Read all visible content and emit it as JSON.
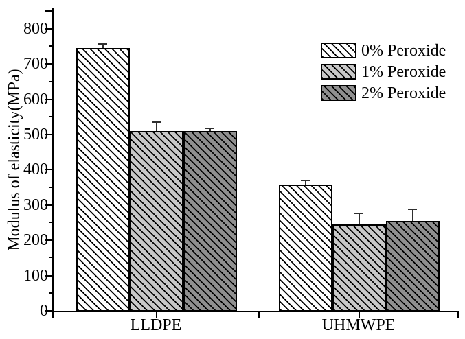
{
  "chart_data": {
    "type": "bar",
    "title": "",
    "ylabel": "Modulus of elasticity(MPa)",
    "xlabel": "",
    "categories": [
      "LLDPE",
      "UHMWPE"
    ],
    "series": [
      {
        "name": "0% Peroxide",
        "values": [
          745,
          357
        ],
        "errors_plus": [
          12,
          13
        ],
        "fill": "#ffffff"
      },
      {
        "name": "1% Peroxide",
        "values": [
          510,
          245
        ],
        "errors_plus": [
          25,
          31
        ],
        "fill": "#c8c8c8"
      },
      {
        "name": "2% Peroxide",
        "values": [
          510,
          255
        ],
        "errors_plus": [
          8,
          33
        ],
        "fill": "#8f8f8f"
      }
    ],
    "hatch_pattern": "diagonal-down",
    "hatch_color": "#000000",
    "axis_color": "#000000",
    "error_bar_color": "#2f2f2f",
    "ylim": [
      0,
      856
    ],
    "yticks": [
      "0",
      "100",
      "200",
      "300",
      "400",
      "500",
      "600",
      "700",
      "800"
    ],
    "ytick_values": [
      0,
      100,
      200,
      300,
      400,
      500,
      600,
      700,
      800
    ],
    "minor_tick_step": 50,
    "grid": false,
    "legend_position": "upper-right"
  }
}
